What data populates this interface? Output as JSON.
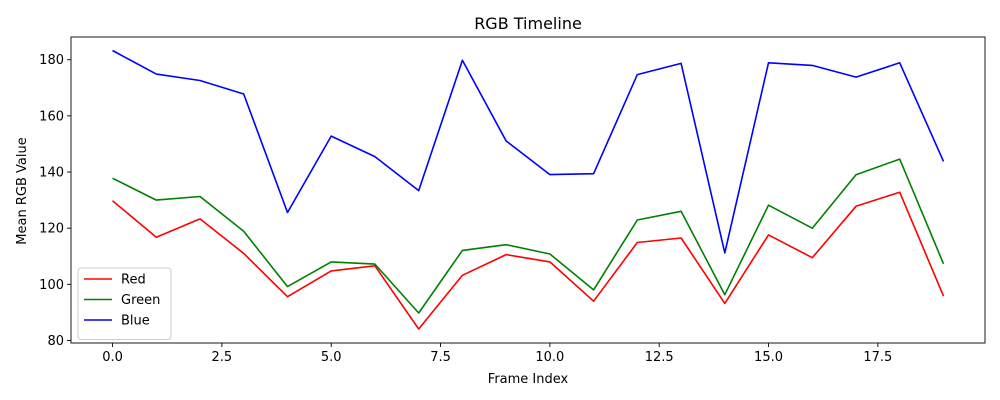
{
  "chart_data": {
    "type": "line",
    "title": "RGB Timeline",
    "xlabel": "Frame Index",
    "ylabel": "Mean RGB Value",
    "xlim": [
      -0.95,
      19.95
    ],
    "ylim": [
      79.1,
      188.1
    ],
    "xticks": [
      0.0,
      2.5,
      5.0,
      7.5,
      10.0,
      12.5,
      15.0,
      17.5
    ],
    "xtick_labels": [
      "0.0",
      "2.5",
      "5.0",
      "7.5",
      "10.0",
      "12.5",
      "15.0",
      "17.5"
    ],
    "yticks": [
      80,
      100,
      120,
      140,
      160,
      180
    ],
    "ytick_labels": [
      "80",
      "100",
      "120",
      "140",
      "160",
      "180"
    ],
    "grid": false,
    "legend_position": "lower-left",
    "x": [
      0,
      1,
      2,
      3,
      4,
      5,
      6,
      7,
      8,
      9,
      10,
      11,
      12,
      13,
      14,
      15,
      16,
      17,
      18,
      19
    ],
    "series": [
      {
        "name": "Red",
        "color": "#ff0000",
        "values": [
          129.8,
          116.8,
          123.3,
          111.0,
          95.6,
          104.8,
          106.6,
          84.1,
          103.2,
          110.6,
          108.0,
          94.0,
          114.9,
          116.5,
          93.2,
          117.6,
          109.5,
          127.8,
          132.8,
          95.8
        ]
      },
      {
        "name": "Green",
        "color": "#008000",
        "values": [
          137.8,
          130.0,
          131.3,
          118.9,
          99.2,
          108.0,
          107.2,
          89.8,
          112.1,
          114.1,
          110.8,
          98.0,
          122.9,
          126.0,
          96.3,
          128.2,
          120.0,
          139.0,
          144.6,
          107.3
        ]
      },
      {
        "name": "Blue",
        "color": "#0000ff",
        "values": [
          183.3,
          174.9,
          172.6,
          167.8,
          125.6,
          152.8,
          145.5,
          133.4,
          179.8,
          151.1,
          139.1,
          139.4,
          174.7,
          178.7,
          111.2,
          178.9,
          178.0,
          173.8,
          178.9,
          143.8
        ]
      }
    ]
  }
}
